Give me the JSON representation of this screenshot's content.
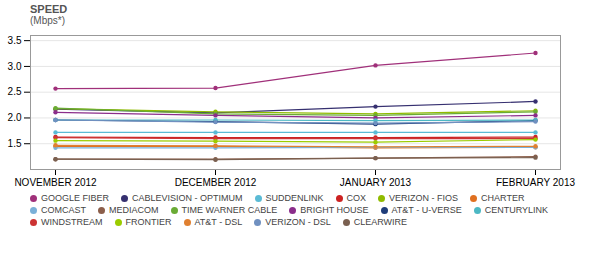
{
  "chart_data": {
    "type": "line",
    "title": "SPEED",
    "subtitle": "(Mbps*)",
    "categories": [
      "NOVEMBER 2012",
      "DECEMBER 2012",
      "JANUARY 2013",
      "FEBRUARY 2013"
    ],
    "ylim": [
      1.0,
      3.6
    ],
    "yticks": [
      1.5,
      {
        "value": 2.0,
        "label": "2.0"
      },
      2.5,
      {
        "value": 3.0,
        "label": "3.0"
      },
      3.5
    ],
    "grid": true,
    "legend": "bottom",
    "marker": "circle",
    "series": [
      {
        "name": "GOOGLE FIBER",
        "color": "#a0307a",
        "values": [
          2.57,
          2.58,
          3.02,
          3.26
        ]
      },
      {
        "name": "CABLEVISION - OPTIMUM",
        "color": "#363070",
        "values": [
          2.17,
          2.1,
          2.22,
          2.32
        ]
      },
      {
        "name": "SUDDENLINK",
        "color": "#5bbbd5",
        "values": [
          1.72,
          1.72,
          1.72,
          1.72
        ]
      },
      {
        "name": "COX",
        "color": "#cc2222",
        "values": [
          1.63,
          1.62,
          1.62,
          1.63
        ]
      },
      {
        "name": "VERIZON - FIOS",
        "color": "#90bb00",
        "values": [
          2.18,
          2.12,
          2.08,
          2.14
        ]
      },
      {
        "name": "CHARTER",
        "color": "#e07020",
        "values": [
          1.45,
          1.45,
          1.42,
          1.43
        ]
      },
      {
        "name": "COMCAST",
        "color": "#7ab0d8",
        "values": [
          1.42,
          1.42,
          1.43,
          1.43
        ]
      },
      {
        "name": "MEDIACOM",
        "color": "#8b5e4a",
        "values": [
          1.2,
          1.2,
          1.22,
          1.25
        ]
      },
      {
        "name": "TIME WARNER CABLE",
        "color": "#6aab35",
        "values": [
          2.19,
          2.08,
          2.05,
          2.12
        ]
      },
      {
        "name": "BRIGHT HOUSE",
        "color": "#8b2d8b",
        "values": [
          2.11,
          2.05,
          2.0,
          2.05
        ]
      },
      {
        "name": "AT&T - U-VERSE",
        "color": "#1f3d7a",
        "values": [
          1.96,
          1.93,
          1.88,
          1.95
        ]
      },
      {
        "name": "CENTURYLINK",
        "color": "#4cb8c4",
        "values": [
          1.96,
          1.96,
          1.95,
          1.96
        ]
      },
      {
        "name": "WINDSTREAM",
        "color": "#cc3333",
        "values": [
          1.62,
          1.6,
          1.6,
          1.6
        ]
      },
      {
        "name": "FRONTIER",
        "color": "#9bcc00",
        "values": [
          1.56,
          1.55,
          1.53,
          1.58
        ]
      },
      {
        "name": "AT&T - DSL",
        "color": "#e08030",
        "values": [
          1.47,
          1.46,
          1.44,
          1.45
        ]
      },
      {
        "name": "VERIZON - DSL",
        "color": "#7090c0",
        "values": [
          1.96,
          1.92,
          1.9,
          1.93
        ]
      },
      {
        "name": "CLEARWIRE",
        "color": "#7a6050",
        "values": [
          1.2,
          1.19,
          1.22,
          1.23
        ]
      }
    ]
  }
}
